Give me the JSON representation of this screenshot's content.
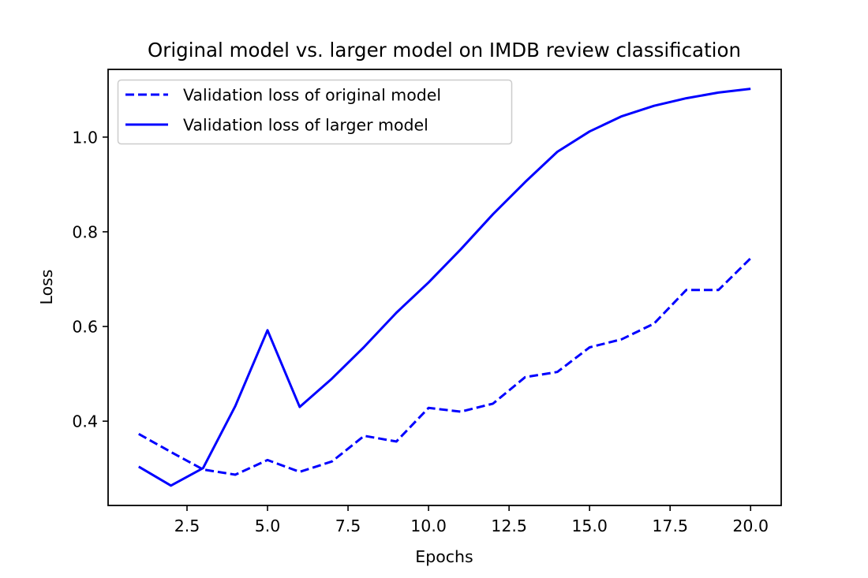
{
  "chart_data": {
    "type": "line",
    "title": "Original model vs. larger model on IMDB review classification",
    "xlabel": "Epochs",
    "ylabel": "Loss",
    "xlim": [
      0.05,
      20.95
    ],
    "ylim": [
      0.222,
      1.143
    ],
    "xticks": [
      2.5,
      5.0,
      7.5,
      10.0,
      12.5,
      15.0,
      17.5,
      20.0
    ],
    "xtick_labels": [
      "2.5",
      "5.0",
      "7.5",
      "10.0",
      "12.5",
      "15.0",
      "17.5",
      "20.0"
    ],
    "yticks": [
      0.4,
      0.6,
      0.8,
      1.0
    ],
    "ytick_labels": [
      "0.4",
      "0.6",
      "0.8",
      "1.0"
    ],
    "grid": false,
    "legend_position": "top-left",
    "x": [
      1,
      2,
      3,
      4,
      5,
      6,
      7,
      8,
      9,
      10,
      11,
      12,
      13,
      14,
      15,
      16,
      17,
      18,
      19,
      20
    ],
    "series": [
      {
        "name": "Validation loss of original model",
        "style": "dashed",
        "color": "#0000ff",
        "values": [
          0.373,
          0.335,
          0.298,
          0.287,
          0.318,
          0.293,
          0.315,
          0.369,
          0.357,
          0.428,
          0.42,
          0.437,
          0.493,
          0.504,
          0.556,
          0.573,
          0.606,
          0.677,
          0.677,
          0.744
        ]
      },
      {
        "name": "Validation loss of larger model",
        "style": "solid",
        "color": "#0000ff",
        "values": [
          0.304,
          0.264,
          0.301,
          0.432,
          0.592,
          0.43,
          0.49,
          0.557,
          0.629,
          0.693,
          0.763,
          0.837,
          0.905,
          0.969,
          1.012,
          1.044,
          1.066,
          1.082,
          1.094,
          1.102
        ]
      }
    ]
  }
}
